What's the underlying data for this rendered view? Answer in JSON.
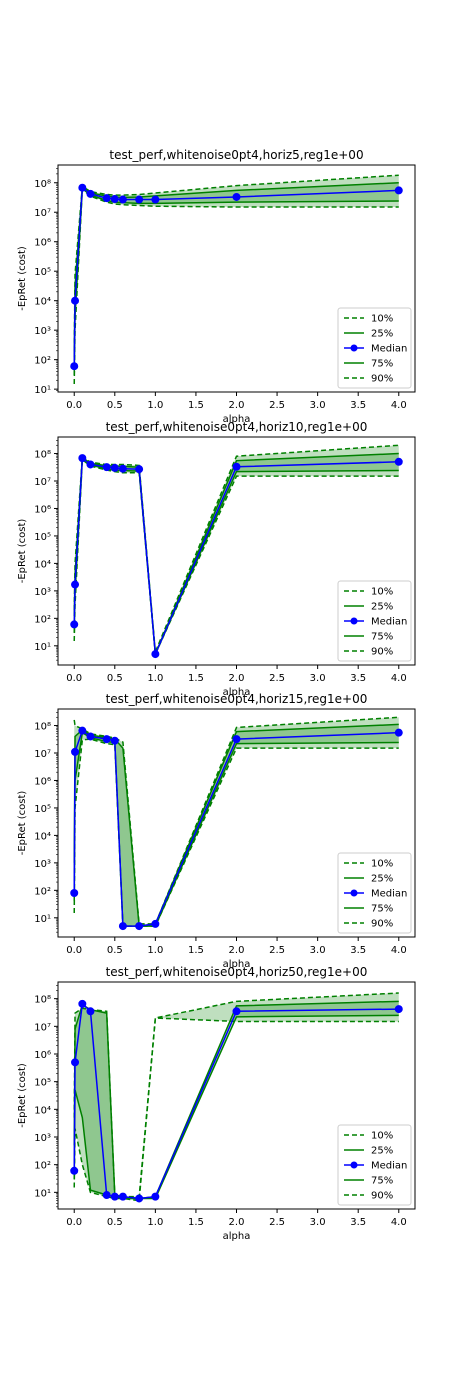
{
  "figure": {},
  "chart_data": [
    {
      "type": "line",
      "title": "test_perf,whitenoise0pt4,horiz5,reg1e+00",
      "xlabel": "alpha",
      "ylabel": "-EpRet (cost)",
      "yscale": "log",
      "xlim": [
        -0.2,
        4.2
      ],
      "ylim": [
        8,
        400000000
      ],
      "x_ticks": [
        0.0,
        0.5,
        1.0,
        1.5,
        2.0,
        2.5,
        3.0,
        3.5,
        4.0
      ],
      "x_tick_labels": [
        "0.0",
        "0.5",
        "1.0",
        "1.5",
        "2.0",
        "2.5",
        "3.0",
        "3.5",
        "4.0"
      ],
      "y_ticks": [
        10,
        100,
        1000,
        10000,
        100000,
        1000000,
        10000000,
        100000000
      ],
      "y_tick_labels": [
        "10¹",
        "10²",
        "10³",
        "10⁴",
        "10⁵",
        "10⁶",
        "10⁷",
        "10⁸"
      ],
      "legend_position": "lower right",
      "legend": [
        "10%",
        "25%",
        "Median",
        "75%",
        "90%"
      ],
      "x": [
        0.0,
        0.01,
        0.1,
        0.2,
        0.4,
        0.5,
        0.6,
        0.8,
        1.0,
        2.0,
        4.0
      ],
      "series": [
        {
          "name": "10%",
          "values": [
            15,
            1000,
            60000000,
            35000000,
            22000000,
            19000000,
            18000000,
            17000000,
            16000000,
            15000000,
            15000000
          ]
        },
        {
          "name": "25%",
          "values": [
            30,
            3000,
            63000000,
            38000000,
            25000000,
            22000000,
            21000000,
            20000000,
            20000000,
            22000000,
            24000000
          ]
        },
        {
          "name": "Median",
          "values": [
            60,
            10000,
            68000000,
            42000000,
            30000000,
            28000000,
            27000000,
            27000000,
            27000000,
            33000000,
            55000000
          ]
        },
        {
          "name": "75%",
          "values": [
            120,
            30000,
            72000000,
            46000000,
            35000000,
            33000000,
            32000000,
            33000000,
            36000000,
            55000000,
            100000000
          ]
        },
        {
          "name": "90%",
          "values": [
            200,
            80000,
            76000000,
            50000000,
            40000000,
            38000000,
            38000000,
            40000000,
            45000000,
            80000000,
            180000000
          ]
        }
      ],
      "colors": {
        "band": "#008000",
        "median": "#0000ff"
      }
    },
    {
      "type": "line",
      "title": "test_perf,whitenoise0pt4,horiz10,reg1e+00",
      "xlabel": "alpha",
      "ylabel": "-EpRet (cost)",
      "yscale": "log",
      "xlim": [
        -0.2,
        4.2
      ],
      "ylim": [
        2,
        400000000
      ],
      "x_ticks": [
        0.0,
        0.5,
        1.0,
        1.5,
        2.0,
        2.5,
        3.0,
        3.5,
        4.0
      ],
      "x_tick_labels": [
        "0.0",
        "0.5",
        "1.0",
        "1.5",
        "2.0",
        "2.5",
        "3.0",
        "3.5",
        "4.0"
      ],
      "y_ticks": [
        10,
        100,
        1000,
        10000,
        100000,
        1000000,
        10000000,
        100000000
      ],
      "y_tick_labels": [
        "10¹",
        "10²",
        "10³",
        "10⁴",
        "10⁵",
        "10⁶",
        "10⁷",
        "10⁸"
      ],
      "legend_position": "lower right",
      "legend": [
        "10%",
        "25%",
        "Median",
        "75%",
        "90%"
      ],
      "x": [
        0.0,
        0.01,
        0.1,
        0.2,
        0.4,
        0.5,
        0.6,
        0.8,
        1.0,
        2.0,
        4.0
      ],
      "series": [
        {
          "name": "10%",
          "values": [
            15,
            300,
            60000000,
            35000000,
            25000000,
            22000000,
            20000000,
            20000000,
            5,
            15000000,
            15000000
          ]
        },
        {
          "name": "25%",
          "values": [
            30,
            800,
            63000000,
            38000000,
            28000000,
            25000000,
            24000000,
            23000000,
            5,
            22000000,
            24000000
          ]
        },
        {
          "name": "Median",
          "values": [
            60,
            1700,
            68000000,
            40000000,
            32000000,
            30000000,
            28000000,
            27000000,
            5,
            33000000,
            50000000
          ]
        },
        {
          "name": "75%",
          "values": [
            120,
            4000,
            72000000,
            44000000,
            36000000,
            35000000,
            34000000,
            32000000,
            5,
            55000000,
            100000000
          ]
        },
        {
          "name": "90%",
          "values": [
            200,
            10000,
            76000000,
            48000000,
            40000000,
            40000000,
            40000000,
            37000000,
            6,
            80000000,
            200000000
          ]
        }
      ],
      "colors": {
        "band": "#008000",
        "median": "#0000ff"
      }
    },
    {
      "type": "line",
      "title": "test_perf,whitenoise0pt4,horiz15,reg1e+00",
      "xlabel": "alpha",
      "ylabel": "-EpRet (cost)",
      "yscale": "log",
      "xlim": [
        -0.2,
        4.2
      ],
      "ylim": [
        2,
        400000000
      ],
      "x_ticks": [
        0.0,
        0.5,
        1.0,
        1.5,
        2.0,
        2.5,
        3.0,
        3.5,
        4.0
      ],
      "x_tick_labels": [
        "0.0",
        "0.5",
        "1.0",
        "1.5",
        "2.0",
        "2.5",
        "3.0",
        "3.5",
        "4.0"
      ],
      "y_ticks": [
        10,
        100,
        1000,
        10000,
        100000,
        1000000,
        10000000,
        100000000
      ],
      "y_tick_labels": [
        "10¹",
        "10²",
        "10³",
        "10⁴",
        "10⁵",
        "10⁶",
        "10⁷",
        "10⁸"
      ],
      "legend_position": "lower right",
      "legend": [
        "10%",
        "25%",
        "Median",
        "75%",
        "90%"
      ],
      "x": [
        0.0,
        0.01,
        0.1,
        0.2,
        0.4,
        0.5,
        0.6,
        0.8,
        1.0,
        2.0,
        4.0
      ],
      "series": [
        {
          "name": "10%",
          "values": [
            15,
            100000,
            30000000,
            32000000,
            22000000,
            20000000,
            5,
            5,
            5,
            15000000,
            15000000
          ]
        },
        {
          "name": "25%",
          "values": [
            40,
            1000000,
            55000000,
            36000000,
            26000000,
            24000000,
            5,
            5,
            5,
            22000000,
            24000000
          ]
        },
        {
          "name": "Median",
          "values": [
            80,
            11000000,
            65000000,
            40000000,
            32000000,
            28000000,
            5,
            5,
            6,
            32000000,
            55000000
          ]
        },
        {
          "name": "75%",
          "values": [
            1000,
            40000000,
            70000000,
            45000000,
            36000000,
            32000000,
            15000000,
            5,
            6,
            60000000,
            110000000
          ]
        },
        {
          "name": "90%",
          "values": [
            160000000,
            100000000,
            75000000,
            50000000,
            40000000,
            35000000,
            25000000,
            6,
            6,
            85000000,
            200000000
          ]
        }
      ],
      "colors": {
        "band": "#008000",
        "median": "#0000ff"
      }
    },
    {
      "type": "line",
      "title": "test_perf,whitenoise0pt4,horiz50,reg1e+00",
      "xlabel": "alpha",
      "ylabel": "-EpRet (cost)",
      "yscale": "log",
      "xlim": [
        -0.2,
        4.2
      ],
      "ylim": [
        2.5,
        400000000
      ],
      "x_ticks": [
        0.0,
        0.5,
        1.0,
        1.5,
        2.0,
        2.5,
        3.0,
        3.5,
        4.0
      ],
      "x_tick_labels": [
        "0.0",
        "0.5",
        "1.0",
        "1.5",
        "2.0",
        "2.5",
        "3.0",
        "3.5",
        "4.0"
      ],
      "y_ticks": [
        10,
        100,
        1000,
        10000,
        100000,
        1000000,
        10000000,
        100000000
      ],
      "y_tick_labels": [
        "10¹",
        "10²",
        "10³",
        "10⁴",
        "10⁵",
        "10⁶",
        "10⁷",
        "10⁸"
      ],
      "legend_position": "lower right",
      "legend": [
        "10%",
        "25%",
        "Median",
        "75%",
        "90%"
      ],
      "x": [
        0.0,
        0.01,
        0.1,
        0.2,
        0.4,
        0.5,
        0.6,
        0.8,
        1.0,
        2.0,
        4.0
      ],
      "series": [
        {
          "name": "10%",
          "values": [
            15,
            2000,
            100,
            10,
            7,
            6,
            6,
            5,
            20000000,
            15000000,
            15000000
          ]
        },
        {
          "name": "25%",
          "values": [
            30,
            50000,
            5000,
            12,
            8,
            7,
            6,
            6,
            6,
            22000000,
            25000000
          ]
        },
        {
          "name": "Median",
          "values": [
            60,
            500000,
            65000000,
            35000000,
            8,
            7,
            7,
            6,
            7,
            35000000,
            42000000
          ]
        },
        {
          "name": "75%",
          "values": [
            500,
            8000000,
            60000000,
            40000000,
            30000000,
            8,
            7,
            6,
            7,
            55000000,
            80000000
          ]
        },
        {
          "name": "90%",
          "values": [
            5000,
            30000000,
            45000000,
            40000000,
            35000000,
            8,
            7,
            7,
            20000000,
            80000000,
            160000000
          ]
        }
      ],
      "colors": {
        "band": "#008000",
        "median": "#0000ff"
      }
    }
  ]
}
